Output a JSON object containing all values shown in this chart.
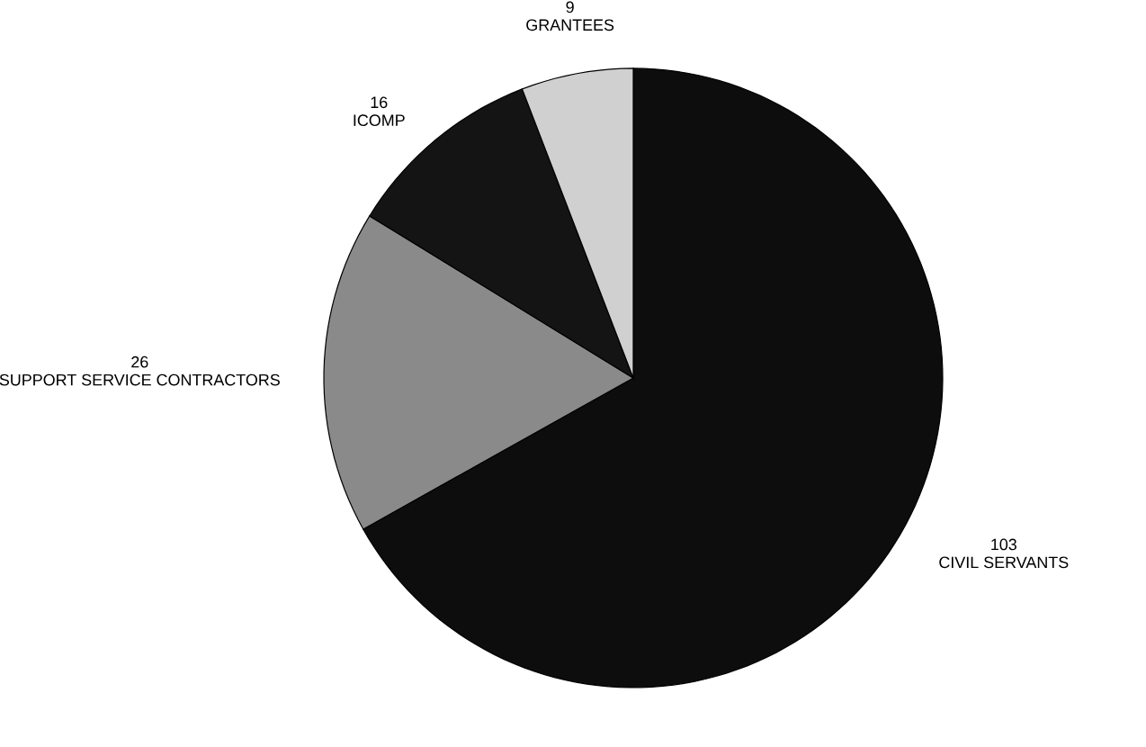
{
  "chart_data": {
    "type": "pie",
    "categories": [
      "CIVIL SERVANTS",
      "SUPPORT SERVICE CONTRACTORS",
      "ICOMP",
      "GRANTEES"
    ],
    "values": [
      103,
      26,
      16,
      9
    ],
    "value_labels": [
      "103",
      "26",
      "16",
      "9"
    ],
    "colors": [
      "#0d0d0d",
      "#8a8a8a",
      "#141414",
      "#d0d0d0"
    ]
  }
}
